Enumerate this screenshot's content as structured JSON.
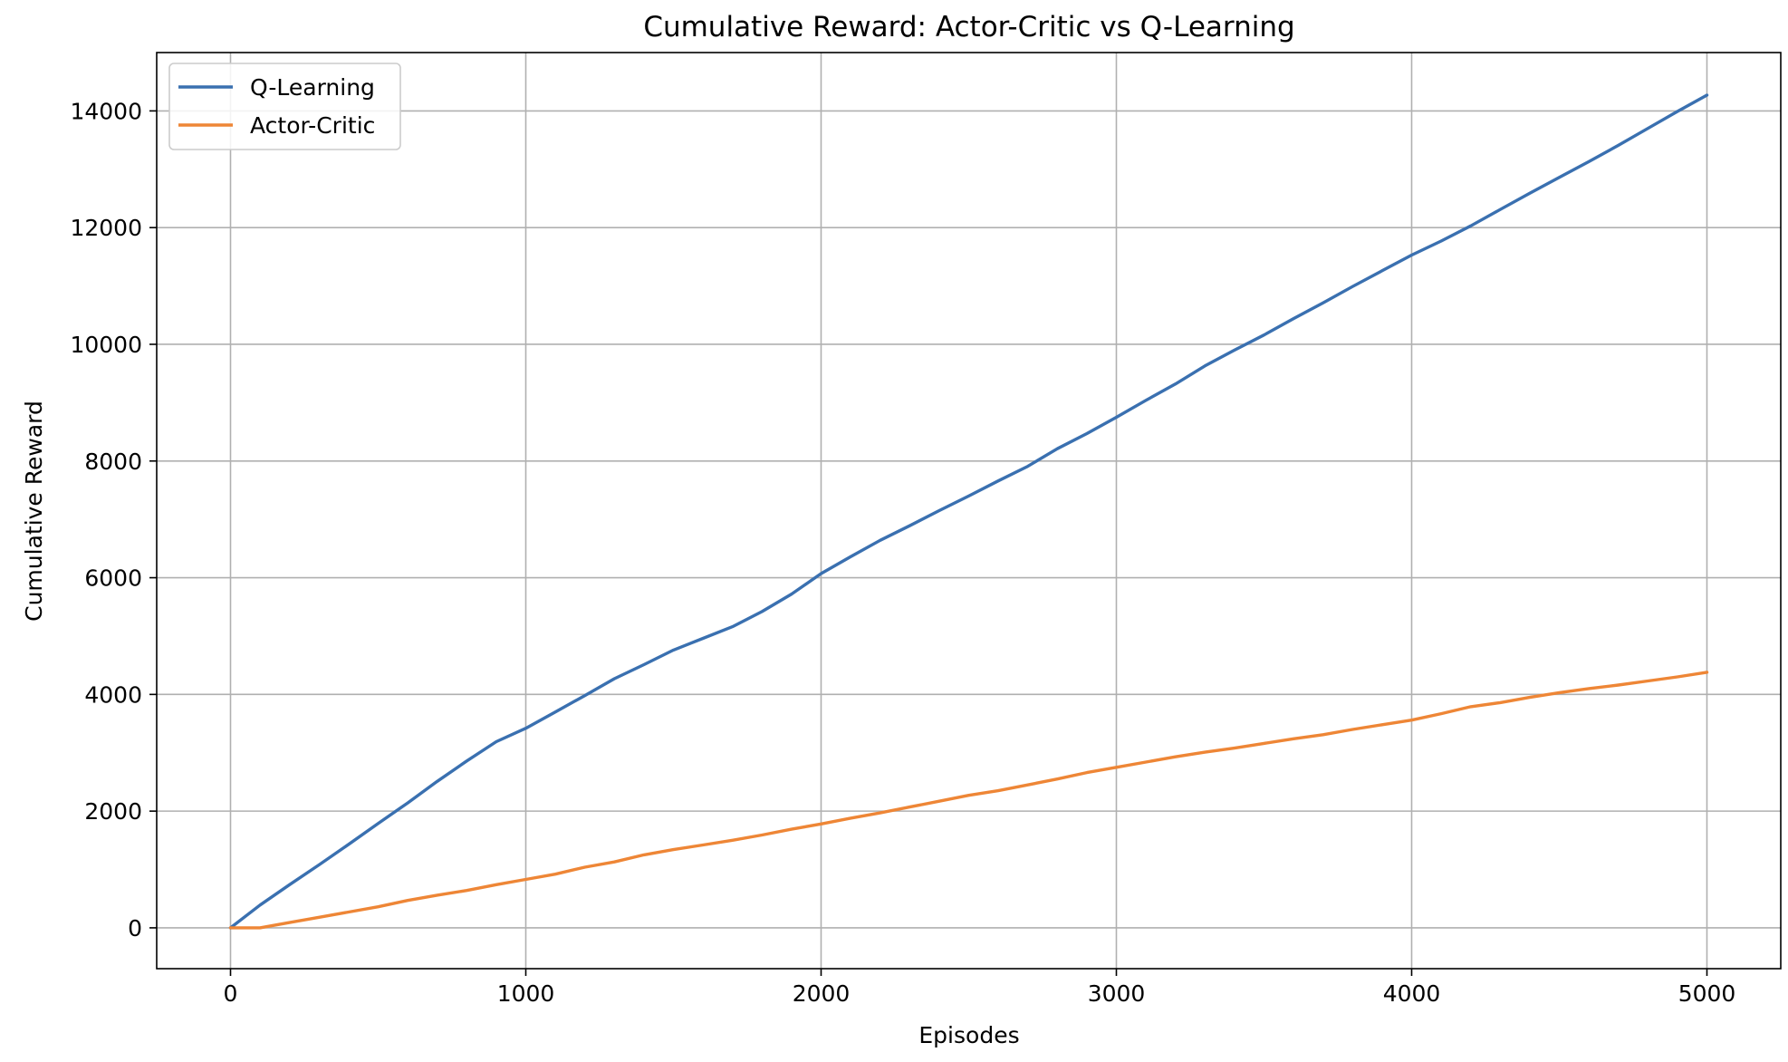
{
  "chart_data": {
    "type": "line",
    "title": "Cumulative Reward: Actor-Critic vs Q-Learning",
    "xlabel": "Episodes",
    "ylabel": "Cumulative Reward",
    "xlim": [
      -250,
      5250
    ],
    "ylim": [
      -700,
      15000
    ],
    "xticks": [
      0,
      1000,
      2000,
      3000,
      4000,
      5000
    ],
    "yticks": [
      0,
      2000,
      4000,
      6000,
      8000,
      10000,
      12000,
      14000
    ],
    "xtick_labels": [
      "0",
      "1000",
      "2000",
      "3000",
      "4000",
      "5000"
    ],
    "ytick_labels": [
      "0",
      "2000",
      "4000",
      "6000",
      "8000",
      "10000",
      "12000",
      "14000"
    ],
    "grid": true,
    "legend_position": "top-left",
    "x": [
      0,
      100,
      200,
      300,
      400,
      500,
      600,
      700,
      800,
      900,
      1000,
      1100,
      1200,
      1300,
      1400,
      1500,
      1600,
      1700,
      1800,
      1900,
      2000,
      2100,
      2200,
      2300,
      2400,
      2500,
      2600,
      2700,
      2800,
      2900,
      3000,
      3100,
      3200,
      3300,
      3400,
      3500,
      3600,
      3700,
      3800,
      3900,
      4000,
      4100,
      4200,
      4300,
      4400,
      4500,
      4600,
      4700,
      4800,
      4900,
      5000
    ],
    "series": [
      {
        "name": "Q-Learning",
        "color": "#3a70b0",
        "values": [
          0,
          390,
          740,
          1080,
          1430,
          1790,
          2140,
          2510,
          2860,
          3190,
          3420,
          3700,
          3980,
          4270,
          4510,
          4760,
          4960,
          5160,
          5420,
          5720,
          6070,
          6360,
          6640,
          6890,
          7150,
          7400,
          7660,
          7910,
          8210,
          8470,
          8750,
          9040,
          9320,
          9630,
          9900,
          10160,
          10440,
          10710,
          10990,
          11260,
          11530,
          11770,
          12030,
          12310,
          12590,
          12860,
          13130,
          13410,
          13700,
          13990,
          14270
        ]
      },
      {
        "name": "Actor-Critic",
        "color": "#ee8636",
        "values": [
          0,
          0,
          90,
          180,
          270,
          360,
          470,
          560,
          640,
          740,
          830,
          920,
          1040,
          1130,
          1250,
          1340,
          1420,
          1500,
          1590,
          1690,
          1780,
          1880,
          1970,
          2070,
          2170,
          2270,
          2350,
          2450,
          2550,
          2660,
          2750,
          2840,
          2930,
          3010,
          3080,
          3160,
          3240,
          3310,
          3400,
          3480,
          3560,
          3670,
          3790,
          3860,
          3950,
          4030,
          4100,
          4160,
          4230,
          4300,
          4380
        ]
      }
    ]
  }
}
